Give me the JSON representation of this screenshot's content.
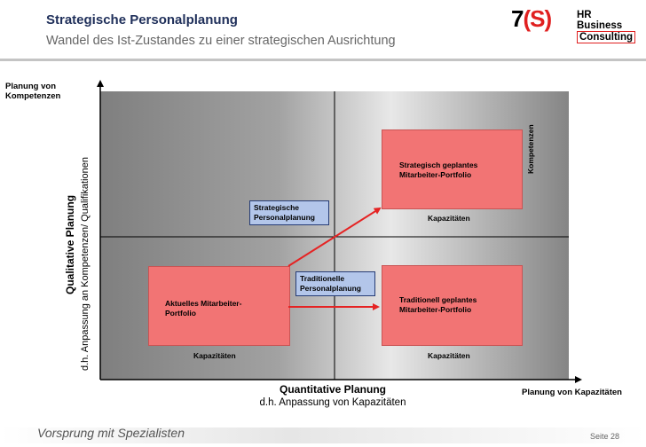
{
  "header": {
    "title": "Strategische Personalplanung",
    "subtitle": "Wandel des Ist-Zustandes zu einer strategischen Ausrichtung",
    "logo": {
      "main_prefix": "7",
      "main_bracket": "(S)",
      "line1": "HR Business",
      "line2": "Consulting"
    }
  },
  "diagram": {
    "y_axis_top_label": "Planung von Kompetenzen",
    "y_axis_title": "Qualitative Planung",
    "y_axis_subtitle": "d.h. Anpassung an Kompetenzen/ Qualifikationen",
    "x_axis_right_label": "Planung von Kapazitäten",
    "x_axis_title": "Quantitative Planung",
    "x_axis_subtitle": "d.h. Anpassung von Kapazitäten",
    "boxes": {
      "current": {
        "label": "Aktuelles Mitarbeiter-Portfolio",
        "axis": "Kapazitäten"
      },
      "traditional": {
        "label": "Traditionell geplantes Mitarbeiter-Portfolio",
        "axis": "Kapazitäten"
      },
      "strategic": {
        "label": "Strategisch geplantes Mitarbeiter-Portfolio",
        "axis": "Kapazitäten",
        "side_axis": "Kompetenzen"
      }
    },
    "tags": {
      "strategic_planning": "Strategische Personalplanung",
      "traditional_planning": "Traditionelle Personalplanung"
    }
  },
  "footer": {
    "slogan": "Vorsprung mit Spezialisten",
    "page": "Seite 28"
  },
  "colors": {
    "title": "#1f2f5a",
    "box_fill": "#f27474",
    "arrow": "#e52323",
    "tag_fill": "#b3c6ea"
  }
}
